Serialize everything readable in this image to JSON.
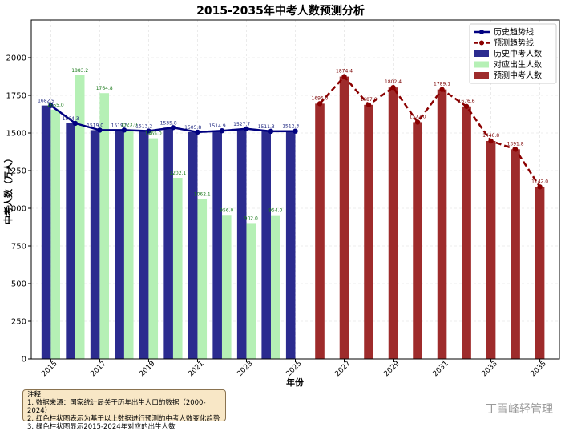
{
  "chart_data": {
    "type": "bar",
    "title": "2015-2035年中考人数预测分析",
    "xlabel": "年份",
    "ylabel": "中考人数（万人）",
    "ylim": [
      0,
      2250
    ],
    "yticks": [
      0,
      250,
      500,
      750,
      1000,
      1250,
      1500,
      1750,
      2000
    ],
    "xticks": [
      2015,
      2017,
      2019,
      2021,
      2023,
      2025,
      2027,
      2029,
      2031,
      2033,
      2035
    ],
    "grid": true,
    "legend_position": "top-right",
    "colors": {
      "history_bar": "#2b2b8f",
      "birth_bar": "#b5f0b5",
      "history_line": "#000080",
      "prediction_bar": "#9e2b2b",
      "prediction_line": "#8b0000"
    },
    "series": [
      {
        "name": "历史中考人数",
        "kind": "bar",
        "x": [
          2015,
          2016,
          2017,
          2018,
          2019,
          2020,
          2021,
          2022,
          2023,
          2024,
          2025
        ],
        "values": [
          1682.9,
          1564.3,
          1519.0,
          1519.5,
          1513.2,
          1535.8,
          1505.8,
          1514.9,
          1527.7,
          1511.3,
          1512.3
        ]
      },
      {
        "name": "对应出生人数",
        "kind": "bar",
        "x": [
          2015,
          2016,
          2017,
          2018,
          2019,
          2020,
          2021,
          2022,
          2023,
          2024
        ],
        "values": [
          1655.0,
          1883.2,
          1764.8,
          1523.0,
          1465.0,
          1202.1,
          1062.1,
          956.0,
          902.0,
          954.0
        ]
      },
      {
        "name": "预测中考人数",
        "kind": "bar",
        "x": [
          2026,
          2027,
          2028,
          2029,
          2030,
          2031,
          2032,
          2033,
          2034,
          2035
        ],
        "values": [
          1695.0,
          1874.4,
          1687.0,
          1802.4,
          1572.0,
          1789.1,
          1676.6,
          1446.8,
          1391.8,
          1142.0
        ]
      },
      {
        "name": "历史趋势线",
        "kind": "line",
        "x": [
          2015,
          2016,
          2017,
          2018,
          2019,
          2020,
          2021,
          2022,
          2023,
          2024,
          2025
        ],
        "values": [
          1682.9,
          1564.3,
          1519.0,
          1519.5,
          1513.2,
          1535.8,
          1505.8,
          1514.9,
          1527.7,
          1511.3,
          1512.3
        ]
      },
      {
        "name": "预测趋势线",
        "kind": "line",
        "x": [
          2026,
          2027,
          2028,
          2029,
          2030,
          2031,
          2032,
          2033,
          2034,
          2035
        ],
        "values": [
          1695.0,
          1874.4,
          1687.0,
          1802.4,
          1572.0,
          1789.1,
          1676.6,
          1446.8,
          1391.8,
          1142.0
        ]
      }
    ],
    "legend": [
      "历史趋势线",
      "预测趋势线",
      "历史中考人数",
      "对应出生人数",
      "预测中考人数"
    ]
  },
  "notes": {
    "title": "注释:",
    "lines": [
      "1. 数据来源：国家统计局关于历年出生人口的数据（2000-2024）",
      "2. 红色柱状图表示为基于以上数据进行预测的中考人数变化趋势",
      "3. 绿色柱状图显示2015-2024年对应的出生人数"
    ]
  },
  "watermark": "丁雪峰轻管理"
}
